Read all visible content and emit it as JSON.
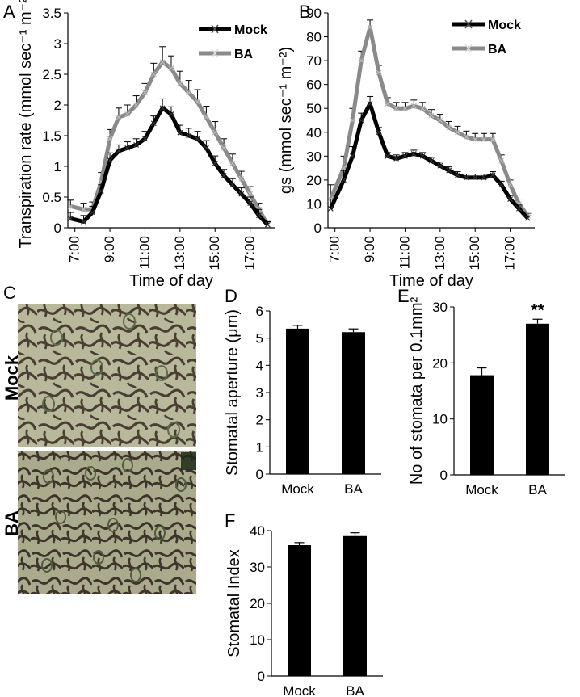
{
  "panels": {
    "A": "A",
    "B": "B",
    "C": "C",
    "D": "D",
    "E": "E",
    "F": "F"
  },
  "micrograph": {
    "top_label": "Mock",
    "bottom_label": "BA"
  },
  "colors": {
    "mock": "#000000",
    "ba": "#8a8a8a",
    "ba_light": "#c0c0c0",
    "bar": "#000000"
  },
  "chart_data": [
    {
      "id": "A",
      "type": "line",
      "ylabel": "Transpiration rate (mmol sec⁻¹ m⁻²)",
      "xlabel": "Time of day",
      "ylim": [
        0,
        3.5
      ],
      "yticks": [
        0,
        0.5,
        1,
        1.5,
        2,
        2.5,
        3,
        3.5
      ],
      "ytick_labels": [
        "0",
        "0.5",
        "1",
        "1.5",
        "2",
        "2.5",
        "3",
        "3.5"
      ],
      "xlim": [
        6.6,
        18.4
      ],
      "xticks": [
        "7:00",
        "9:00",
        "11:00",
        "13:00",
        "15:00",
        "17:00"
      ],
      "legend": "top-right",
      "series": [
        {
          "name": "Mock",
          "x": [
            6.75,
            7.5,
            8.0,
            8.5,
            9.0,
            9.5,
            10.0,
            10.5,
            11.0,
            11.5,
            12.0,
            12.5,
            13.0,
            13.5,
            14.0,
            14.5,
            15.0,
            15.5,
            16.0,
            16.5,
            17.0,
            17.5,
            18.0
          ],
          "y": [
            0.15,
            0.1,
            0.25,
            0.6,
            1.1,
            1.25,
            1.3,
            1.35,
            1.45,
            1.7,
            1.95,
            1.85,
            1.55,
            1.5,
            1.45,
            1.3,
            1.05,
            0.85,
            0.7,
            0.55,
            0.4,
            0.2,
            0.05
          ],
          "err": [
            0.1,
            0.1,
            0.1,
            0.1,
            0.12,
            0.1,
            0.1,
            0.1,
            0.12,
            0.12,
            0.15,
            0.12,
            0.12,
            0.12,
            0.12,
            0.12,
            0.12,
            0.1,
            0.1,
            0.1,
            0.1,
            0.1,
            0.05
          ]
        },
        {
          "name": "BA",
          "x": [
            6.75,
            7.5,
            8.0,
            8.5,
            9.0,
            9.5,
            10.0,
            10.5,
            11.0,
            11.5,
            12.0,
            12.5,
            13.0,
            13.5,
            14.0,
            14.5,
            15.0,
            15.5,
            16.0,
            16.5,
            17.0,
            17.5,
            18.0
          ],
          "y": [
            0.35,
            0.3,
            0.3,
            0.75,
            1.45,
            1.8,
            1.85,
            2.0,
            2.2,
            2.5,
            2.7,
            2.6,
            2.35,
            2.2,
            2.05,
            1.8,
            1.55,
            1.3,
            1.05,
            0.8,
            0.55,
            0.3,
            0.05
          ],
          "err": [
            0.1,
            0.1,
            0.12,
            0.15,
            0.15,
            0.15,
            0.15,
            0.15,
            0.15,
            0.18,
            0.25,
            0.2,
            0.2,
            0.2,
            0.2,
            0.18,
            0.18,
            0.15,
            0.15,
            0.12,
            0.12,
            0.1,
            0.05
          ]
        }
      ]
    },
    {
      "id": "B",
      "type": "line",
      "ylabel": "gs (mmol sec⁻¹ m⁻²)",
      "xlabel": "Time of day",
      "ylim": [
        0,
        90
      ],
      "yticks": [
        0,
        10,
        20,
        30,
        40,
        50,
        60,
        70,
        80,
        90
      ],
      "xlim": [
        6.6,
        18.4
      ],
      "xticks": [
        "7:00",
        "9:00",
        "11:00",
        "13:00",
        "15:00",
        "17:00"
      ],
      "legend": "top-right",
      "series": [
        {
          "name": "Mock",
          "x": [
            6.75,
            7.5,
            8.0,
            8.5,
            9.0,
            9.5,
            10.0,
            10.5,
            11.0,
            11.5,
            12.0,
            12.5,
            13.0,
            13.5,
            14.0,
            14.5,
            15.0,
            15.5,
            16.0,
            16.5,
            17.0,
            17.5,
            18.0
          ],
          "y": [
            8,
            20,
            30,
            45,
            52,
            40,
            30,
            29,
            30,
            31,
            30,
            28,
            26,
            24,
            22,
            21,
            21,
            21,
            22,
            18,
            12,
            8,
            4
          ],
          "err": [
            4,
            4,
            4,
            3,
            3,
            2,
            1.5,
            1.5,
            1.5,
            1.5,
            1.5,
            1.5,
            1.5,
            1.5,
            1.5,
            1.5,
            1.5,
            1.5,
            1.5,
            1.5,
            1.5,
            1.5,
            1
          ]
        },
        {
          "name": "BA",
          "x": [
            6.75,
            7.5,
            8.0,
            8.5,
            9.0,
            9.5,
            10.0,
            10.5,
            11.0,
            11.5,
            12.0,
            12.5,
            13.0,
            13.5,
            14.0,
            14.5,
            15.0,
            15.5,
            16.0,
            16.5,
            17.0,
            17.5,
            18.0
          ],
          "y": [
            12,
            25,
            45,
            70,
            84,
            65,
            52,
            50,
            50,
            51,
            50,
            47,
            45,
            42,
            40,
            38,
            37,
            37,
            37,
            28,
            18,
            10,
            5
          ],
          "err": [
            6,
            5,
            5,
            4,
            3,
            3,
            2.5,
            2.5,
            2.5,
            2.5,
            2.5,
            2.5,
            2.5,
            2.5,
            2.5,
            2.5,
            2.5,
            2.5,
            2.5,
            2.5,
            2,
            2,
            1
          ]
        }
      ]
    },
    {
      "id": "D",
      "type": "bar",
      "ylabel": "Stomatal aperture (μm)",
      "ylim": [
        0,
        6
      ],
      "yticks": [
        0,
        1,
        2,
        3,
        4,
        5,
        6
      ],
      "categories": [
        "Mock",
        "BA"
      ],
      "values": [
        5.35,
        5.22
      ],
      "err": [
        0.12,
        0.12
      ]
    },
    {
      "id": "E",
      "type": "bar",
      "ylabel": "No of stomata per 0.1mm²",
      "ylim": [
        0,
        30
      ],
      "yticks": [
        0,
        10,
        20,
        30
      ],
      "categories": [
        "Mock",
        "BA"
      ],
      "values": [
        17.8,
        27.0
      ],
      "err": [
        1.3,
        0.8
      ],
      "annotations": [
        "",
        "**"
      ]
    },
    {
      "id": "F",
      "type": "bar",
      "ylabel": "Stomatal Index",
      "ylim": [
        0,
        40
      ],
      "yticks": [
        0,
        10,
        20,
        30,
        40
      ],
      "categories": [
        "Mock",
        "BA"
      ],
      "values": [
        36.0,
        38.5
      ],
      "err": [
        0.7,
        0.9
      ]
    }
  ]
}
